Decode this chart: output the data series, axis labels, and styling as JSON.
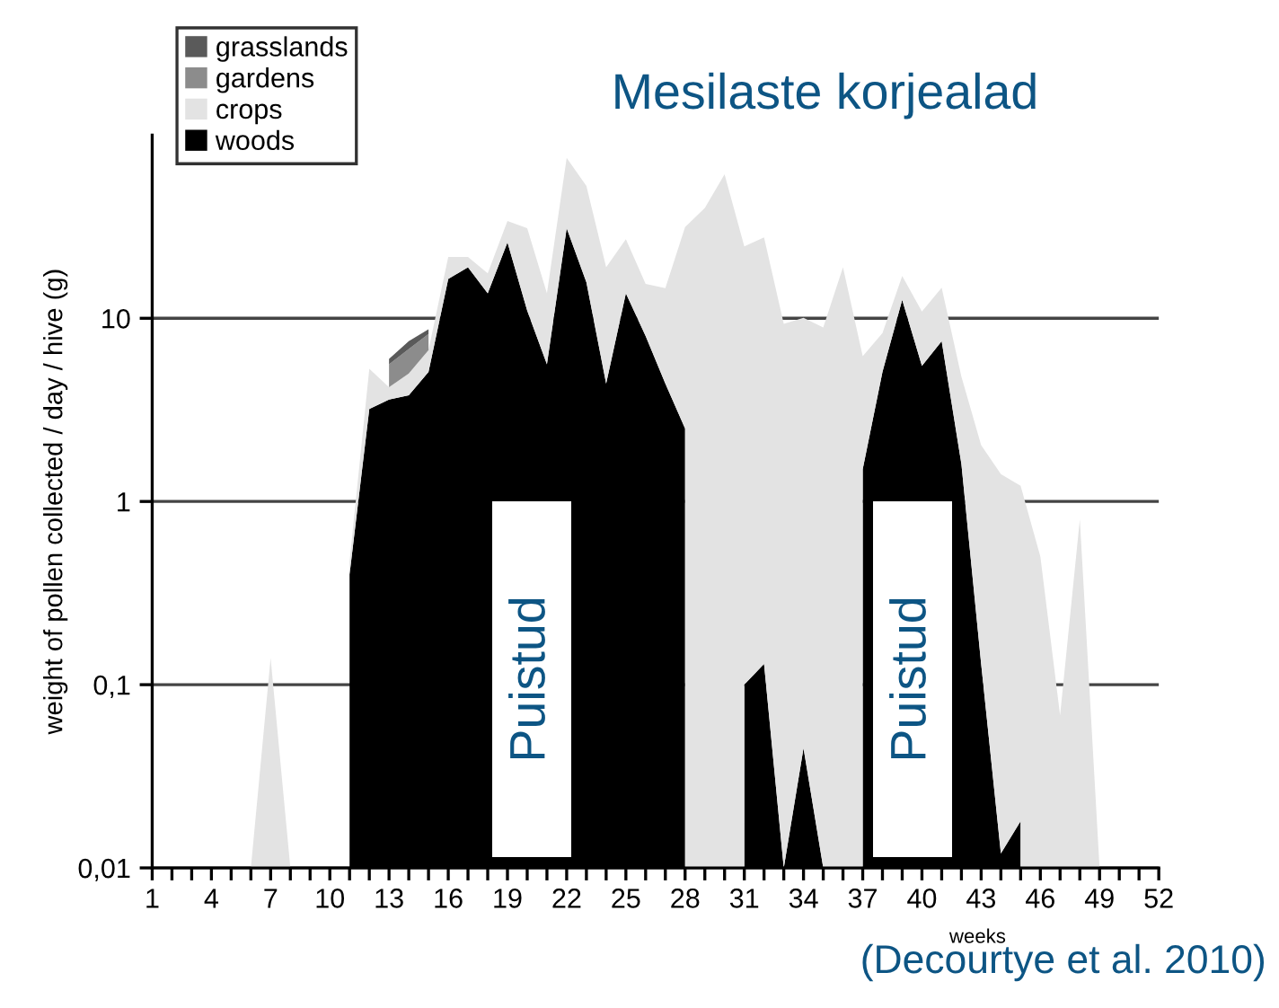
{
  "chart_data": {
    "type": "area",
    "stacked": true,
    "title": "Mesilaste korjealad",
    "xlabel": "weeks",
    "ylabel": "weight of pollen collected / day / hive (g)",
    "x": [
      6,
      7,
      8,
      9,
      10,
      11,
      12,
      13,
      14,
      15,
      16,
      17,
      18,
      19,
      20,
      21,
      22,
      23,
      24,
      25,
      26,
      27,
      28,
      29,
      30,
      31,
      32,
      33,
      34,
      35,
      36,
      37,
      38,
      39,
      40,
      41,
      42,
      43,
      44,
      45,
      46,
      47,
      48,
      49
    ],
    "series": [
      {
        "name": "woods",
        "color": "#000000",
        "values": [
          null,
          null,
          null,
          null,
          null,
          0.4,
          3.2,
          3.6,
          3.8,
          5.1,
          16.4,
          19,
          13.7,
          26,
          11,
          5.6,
          31,
          15.7,
          4.4,
          13.7,
          8,
          4.4,
          2.5,
          null,
          null,
          0.1,
          0.13,
          0.01,
          0.045,
          0.01,
          null,
          1.5,
          5.1,
          12.6,
          5.5,
          7.5,
          1.6,
          0.13,
          0.012,
          0.018,
          null,
          null,
          null,
          null
        ]
      },
      {
        "name": "crops",
        "color": "#e3e3e3",
        "values": [
          0.01,
          0.14,
          0.01,
          null,
          null,
          0.07,
          2.1,
          0.6,
          1.2,
          1.6,
          5.2,
          2.6,
          3.9,
          8,
          20,
          8.1,
          44,
          37,
          14.6,
          13.3,
          7.4,
          10.2,
          29,
          40,
          61,
          24.6,
          27.5,
          9.3,
          10,
          8.9,
          19,
          4.7,
          3.2,
          4.4,
          5.4,
          7.2,
          3.2,
          1.9,
          1.4,
          1.2,
          0.5,
          0.068,
          0.8,
          0.01
        ]
      },
      {
        "name": "gardens",
        "color": "#8c8c8c",
        "values": [
          null,
          null,
          null,
          null,
          null,
          null,
          null,
          1.4,
          1.8,
          1.5,
          null,
          null,
          null,
          null,
          null,
          null,
          null,
          null,
          null,
          null,
          null,
          null,
          null,
          null,
          null,
          null,
          null,
          null,
          null,
          null,
          null,
          null,
          null,
          null,
          null,
          null,
          null,
          null,
          null,
          null,
          null,
          null,
          null,
          null
        ]
      },
      {
        "name": "grasslands",
        "color": "#5a5a5a",
        "values": [
          null,
          null,
          null,
          null,
          null,
          null,
          null,
          0.4,
          0.7,
          0.5,
          null,
          null,
          null,
          null,
          null,
          null,
          null,
          null,
          null,
          null,
          null,
          null,
          null,
          null,
          null,
          null,
          null,
          null,
          null,
          null,
          null,
          null,
          null,
          null,
          null,
          null,
          null,
          null,
          null,
          null,
          null,
          null,
          null,
          null
        ]
      }
    ],
    "log": "y",
    "ylim": [
      0.01,
      100
    ],
    "yticks": [
      {
        "value": 0.01,
        "label": "0,01"
      },
      {
        "value": 0.1,
        "label": "0,1"
      },
      1,
      10
    ],
    "xlim": [
      1,
      52
    ],
    "xticks": [
      1,
      {
        "value": 2,
        "label": null
      },
      {
        "value": 3,
        "label": null
      },
      4,
      {
        "value": 5,
        "label": null
      },
      {
        "value": 6,
        "label": null
      },
      7,
      {
        "value": 8,
        "label": null
      },
      {
        "value": 9,
        "label": null
      },
      10,
      {
        "value": 11,
        "label": null
      },
      {
        "value": 12,
        "label": null
      },
      13,
      {
        "value": 14,
        "label": null
      },
      {
        "value": 15,
        "label": null
      },
      16,
      {
        "value": 17,
        "label": null
      },
      {
        "value": 18,
        "label": null
      },
      19,
      {
        "value": 20,
        "label": null
      },
      {
        "value": 21,
        "label": null
      },
      22,
      {
        "value": 23,
        "label": null
      },
      {
        "value": 24,
        "label": null
      },
      25,
      {
        "value": 26,
        "label": null
      },
      {
        "value": 27,
        "label": null
      },
      28,
      {
        "value": 29,
        "label": null
      },
      {
        "value": 30,
        "label": null
      },
      31,
      {
        "value": 32,
        "label": null
      },
      {
        "value": 33,
        "label": null
      },
      34,
      {
        "value": 35,
        "label": null
      },
      {
        "value": 36,
        "label": null
      },
      37,
      {
        "value": 38,
        "label": null
      },
      {
        "value": 39,
        "label": null
      },
      40,
      {
        "value": 41,
        "label": null
      },
      {
        "value": 42,
        "label": null
      },
      43,
      {
        "value": 44,
        "label": null
      },
      {
        "value": 45,
        "label": null
      },
      46,
      {
        "value": 47,
        "label": null
      },
      {
        "value": 48,
        "label": null
      },
      49,
      {
        "value": 50,
        "label": null
      },
      {
        "value": 51,
        "label": null
      },
      52
    ],
    "grid": "y",
    "legend": "top left",
    "annotations": [
      "Puistud",
      "Puistud",
      "(Decourtye et al. 2010)"
    ]
  }
}
